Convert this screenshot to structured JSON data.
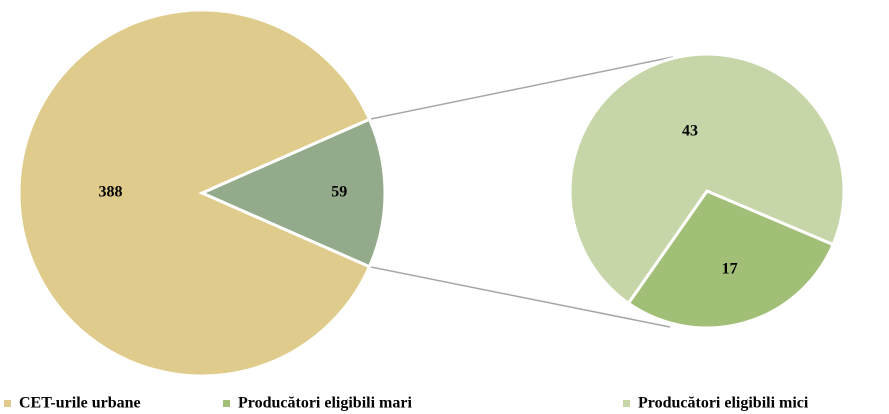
{
  "chart_data": {
    "type": "pie-of-pie",
    "series": [
      {
        "name": "CET-urile urbane",
        "color": "#dfcc8c",
        "value": 388
      },
      {
        "name": "Producători eligibili mari",
        "color": "#a2bf78",
        "value": 17
      },
      {
        "name": "Producători eligibili mici",
        "color": "#c6d6a8",
        "value": 43
      }
    ],
    "other": {
      "value": 59,
      "color": "#94ab8b"
    }
  }
}
